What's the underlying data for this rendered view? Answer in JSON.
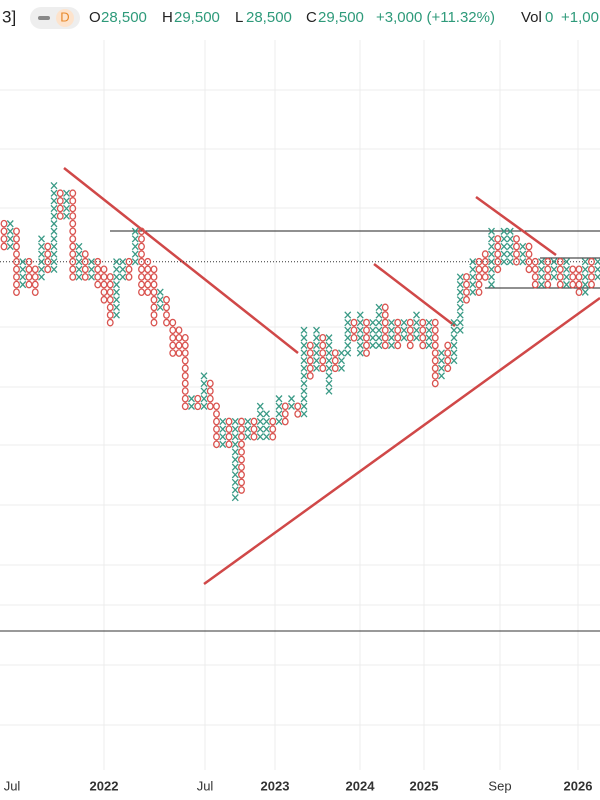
{
  "header": {
    "corner": "3]",
    "interval": "D",
    "open_label": "O",
    "open": "28,500",
    "high_label": "H",
    "high": "29,500",
    "low_label": "L",
    "low": "28,500",
    "close_label": "C",
    "close": "29,500",
    "change": "+3,000 (+11.32%)",
    "vol_label": "Vol",
    "vol": "0",
    "vol_change": "+1,00"
  },
  "chart_data": {
    "type": "pnf",
    "box_size": 500,
    "ylim": [
      5300,
      46700
    ],
    "x_color": "#3a9a86",
    "o_color": "#d9534f",
    "last_price": 29500,
    "x_labels": [
      "Jul",
      "2022",
      "Jul",
      "2023",
      "2024",
      "2025",
      "Sep",
      "2026"
    ],
    "kinds": [
      "O",
      "X",
      "O",
      "X",
      "O",
      "O",
      "X",
      "O",
      "X",
      "O",
      "X",
      "O",
      "X",
      "O",
      "X",
      "O",
      "O",
      "O",
      "X",
      "X",
      "O",
      "X",
      "O",
      "O",
      "O",
      "X",
      "O",
      "O",
      "O",
      "O",
      "X",
      "O",
      "X",
      "O",
      "O",
      "X",
      "O",
      "X",
      "O",
      "X",
      "O",
      "X",
      "X",
      "O",
      "X",
      "O",
      "X",
      "O",
      "X",
      "O",
      "X",
      "O",
      "X",
      "O",
      "X",
      "X",
      "O",
      "X",
      "O",
      "X",
      "X",
      "O",
      "X",
      "O",
      "X",
      "O",
      "X",
      "O",
      "X",
      "O",
      "X",
      "O",
      "X",
      "X",
      "O",
      "X",
      "O",
      "O",
      "X",
      "O",
      "X",
      "X",
      "O",
      "X",
      "O",
      "O",
      "X",
      "O",
      "X",
      "O",
      "X",
      "O",
      "O",
      "X",
      "O",
      "X"
    ],
    "high": [
      32000,
      32000,
      31500,
      29500,
      29500,
      29000,
      31000,
      30500,
      34500,
      34000,
      34000,
      34000,
      30500,
      30000,
      29500,
      29500,
      29000,
      28500,
      29500,
      29500,
      29500,
      31500,
      31500,
      29500,
      29000,
      27500,
      27000,
      25500,
      25000,
      24500,
      20500,
      20500,
      22000,
      21500,
      20000,
      19000,
      19000,
      19000,
      19000,
      19000,
      19000,
      20000,
      19500,
      19000,
      20500,
      20000,
      20500,
      20000,
      25000,
      24000,
      25000,
      24500,
      24500,
      23500,
      23500,
      26000,
      25500,
      26000,
      25500,
      25500,
      26500,
      26500,
      25500,
      25500,
      25500,
      25500,
      26000,
      25500,
      25500,
      25500,
      23500,
      24000,
      25500,
      28500,
      28500,
      29500,
      29500,
      30000,
      31500,
      31000,
      31500,
      31500,
      31000,
      30500,
      30500,
      29500,
      29500,
      29500,
      29500,
      29500,
      29500,
      29000,
      29000,
      29500,
      29500,
      29500
    ],
    "low": [
      30500,
      30500,
      27500,
      28000,
      28000,
      27500,
      28500,
      29000,
      29000,
      32500,
      32500,
      28500,
      28500,
      28500,
      28500,
      28000,
      27000,
      25500,
      26000,
      28500,
      28500,
      29500,
      27500,
      27500,
      25500,
      26500,
      25500,
      23500,
      23500,
      20000,
      20000,
      20000,
      20000,
      20000,
      17500,
      17500,
      17500,
      14000,
      14500,
      18000,
      18000,
      18000,
      18000,
      18000,
      19000,
      19000,
      20000,
      19500,
      19500,
      22000,
      22500,
      22500,
      21000,
      22500,
      22500,
      23500,
      24500,
      23500,
      23500,
      24000,
      24000,
      24000,
      24000,
      24000,
      24500,
      24000,
      24500,
      24000,
      24000,
      21500,
      22000,
      22500,
      23000,
      25000,
      27000,
      27500,
      27500,
      28500,
      28000,
      29000,
      29500,
      29500,
      29500,
      29500,
      29000,
      28000,
      28000,
      28000,
      28500,
      28000,
      28000,
      28000,
      27500,
      27500,
      28000,
      28500
    ]
  }
}
